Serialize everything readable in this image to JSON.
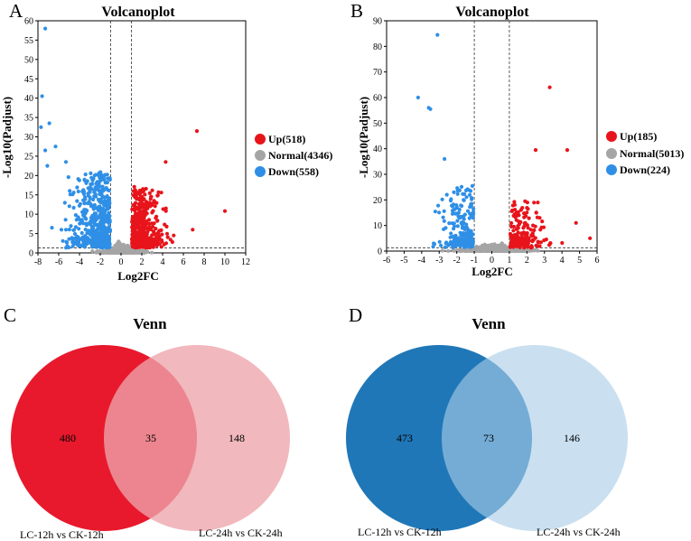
{
  "panel_labels": [
    "A",
    "B",
    "C",
    "D"
  ],
  "colors": {
    "up": "#e8141b",
    "normal": "#a5a5a5",
    "down": "#2f8fe6",
    "venn_c_left": "#e8192d",
    "venn_c_right": "#eda4ab",
    "venn_d_left": "#2077b7",
    "venn_d_right": "#a9cde6"
  },
  "chart_data": [
    {
      "type": "scatter",
      "panel": "A",
      "title": "Volcanoplot",
      "xlabel": "Log2FC",
      "ylabel": "-Log10(Padjust)",
      "xlim": [
        -8,
        12
      ],
      "ylim": [
        0,
        60
      ],
      "xticks": [
        -8,
        -6,
        -4,
        -2,
        0,
        2,
        4,
        6,
        8,
        10,
        12
      ],
      "yticks": [
        0,
        5,
        10,
        15,
        20,
        25,
        30,
        35,
        40,
        45,
        50,
        55,
        60
      ],
      "thresholds": {
        "log2fc": [
          -1,
          1
        ],
        "padjust_line": 1.3
      },
      "legend": [
        "Up(518)",
        "Normal(4346)",
        "Down(558)"
      ],
      "counts": {
        "up": 518,
        "normal": 4346,
        "down": 558
      },
      "outliers": {
        "down": [
          [
            -7.3,
            58
          ],
          [
            -7.6,
            40.5
          ],
          [
            -6.9,
            33.5
          ],
          [
            -7.7,
            32.5
          ],
          [
            -6.3,
            27.5
          ],
          [
            -7.3,
            26.5
          ],
          [
            -7.1,
            22.5
          ],
          [
            -5.3,
            23.5
          ]
        ],
        "up": [
          [
            7.3,
            31.5
          ],
          [
            10,
            10.8
          ],
          [
            4.3,
            23.5
          ],
          [
            6.9,
            6
          ]
        ]
      }
    },
    {
      "type": "scatter",
      "panel": "B",
      "title": "Volcanoplot",
      "xlabel": "Log2FC",
      "ylabel": "-Log10(Padjust)",
      "xlim": [
        -6,
        6
      ],
      "ylim": [
        0,
        90
      ],
      "xticks": [
        -6,
        -5,
        -4,
        -3,
        -2,
        -1,
        0,
        1,
        2,
        3,
        4,
        5,
        6
      ],
      "yticks": [
        0,
        10,
        20,
        30,
        40,
        50,
        60,
        70,
        80,
        90
      ],
      "thresholds": {
        "log2fc": [
          -1,
          1
        ],
        "padjust_line": 1.3
      },
      "legend": [
        "Up(185)",
        "Normal(5013)",
        "Down(224)"
      ],
      "counts": {
        "up": 185,
        "normal": 5013,
        "down": 224
      },
      "outliers": {
        "down": [
          [
            -3.1,
            84.5
          ],
          [
            -4.2,
            60
          ],
          [
            -3.6,
            56
          ],
          [
            -3.5,
            55.5
          ],
          [
            -2.7,
            36
          ]
        ],
        "up": [
          [
            3.3,
            64
          ],
          [
            4.3,
            39.5
          ],
          [
            2.5,
            39.5
          ],
          [
            4.8,
            11
          ],
          [
            5.6,
            5
          ]
        ]
      }
    },
    {
      "type": "venn",
      "panel": "C",
      "title": "Venn",
      "sets": [
        "LC-12h vs CK-12h",
        "LC-24h vs CK-24h"
      ],
      "values": {
        "left_only": 480,
        "overlap": 35,
        "right_only": 148
      }
    },
    {
      "type": "venn",
      "panel": "D",
      "title": "Venn",
      "sets": [
        "LC-12h vs CK-12h",
        "LC-24h vs CK-24h"
      ],
      "values": {
        "left_only": 473,
        "overlap": 73,
        "right_only": 146
      }
    }
  ]
}
